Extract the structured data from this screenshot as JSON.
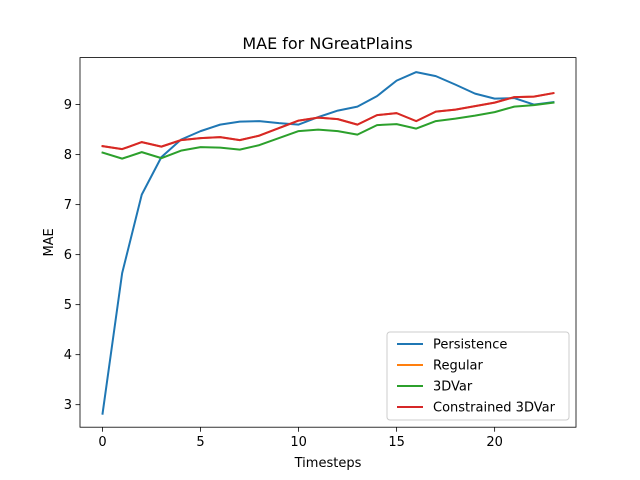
{
  "chart_data": {
    "type": "line",
    "title": "MAE for NGreatPlains",
    "xlabel": "Timesteps",
    "ylabel": "MAE",
    "xlim": [
      -1.15,
      24.15
    ],
    "ylim": [
      2.55,
      9.94
    ],
    "xticks": [
      0,
      5,
      10,
      15,
      20
    ],
    "yticks": [
      3,
      4,
      5,
      6,
      7,
      8,
      9
    ],
    "grid": false,
    "legend_position": "lower-right",
    "x": [
      0,
      1,
      2,
      3,
      4,
      5,
      6,
      7,
      8,
      9,
      10,
      11,
      12,
      13,
      14,
      15,
      16,
      17,
      18,
      19,
      20,
      21,
      22,
      23
    ],
    "series": [
      {
        "name": "Persistence",
        "color": "#1f77b4",
        "values": [
          2.82,
          5.63,
          7.2,
          7.95,
          8.3,
          8.47,
          8.6,
          8.66,
          8.67,
          8.63,
          8.6,
          8.75,
          8.88,
          8.96,
          9.17,
          9.48,
          9.65,
          9.57,
          9.4,
          9.22,
          9.12,
          9.13,
          9.0,
          9.05
        ]
      },
      {
        "name": "Regular",
        "color": "#ff7f0e",
        "values": [
          8.17,
          8.11,
          8.25,
          8.16,
          8.29,
          8.33,
          8.35,
          8.29,
          8.38,
          8.53,
          8.68,
          8.74,
          8.71,
          8.6,
          8.79,
          8.83,
          8.67,
          8.86,
          8.9,
          8.97,
          9.04,
          9.15,
          9.16,
          9.23
        ]
      },
      {
        "name": "3DVar",
        "color": "#2ca02c",
        "values": [
          8.04,
          7.92,
          8.05,
          7.93,
          8.08,
          8.15,
          8.14,
          8.1,
          8.19,
          8.33,
          8.47,
          8.5,
          8.47,
          8.4,
          8.59,
          8.61,
          8.52,
          8.67,
          8.72,
          8.78,
          8.85,
          8.96,
          8.99,
          9.04
        ]
      },
      {
        "name": "Constrained 3DVar",
        "color": "#d62728",
        "values": [
          8.17,
          8.11,
          8.25,
          8.16,
          8.29,
          8.33,
          8.35,
          8.29,
          8.38,
          8.53,
          8.68,
          8.74,
          8.71,
          8.6,
          8.79,
          8.83,
          8.67,
          8.86,
          8.9,
          8.97,
          9.04,
          9.15,
          9.16,
          9.23
        ]
      }
    ]
  }
}
